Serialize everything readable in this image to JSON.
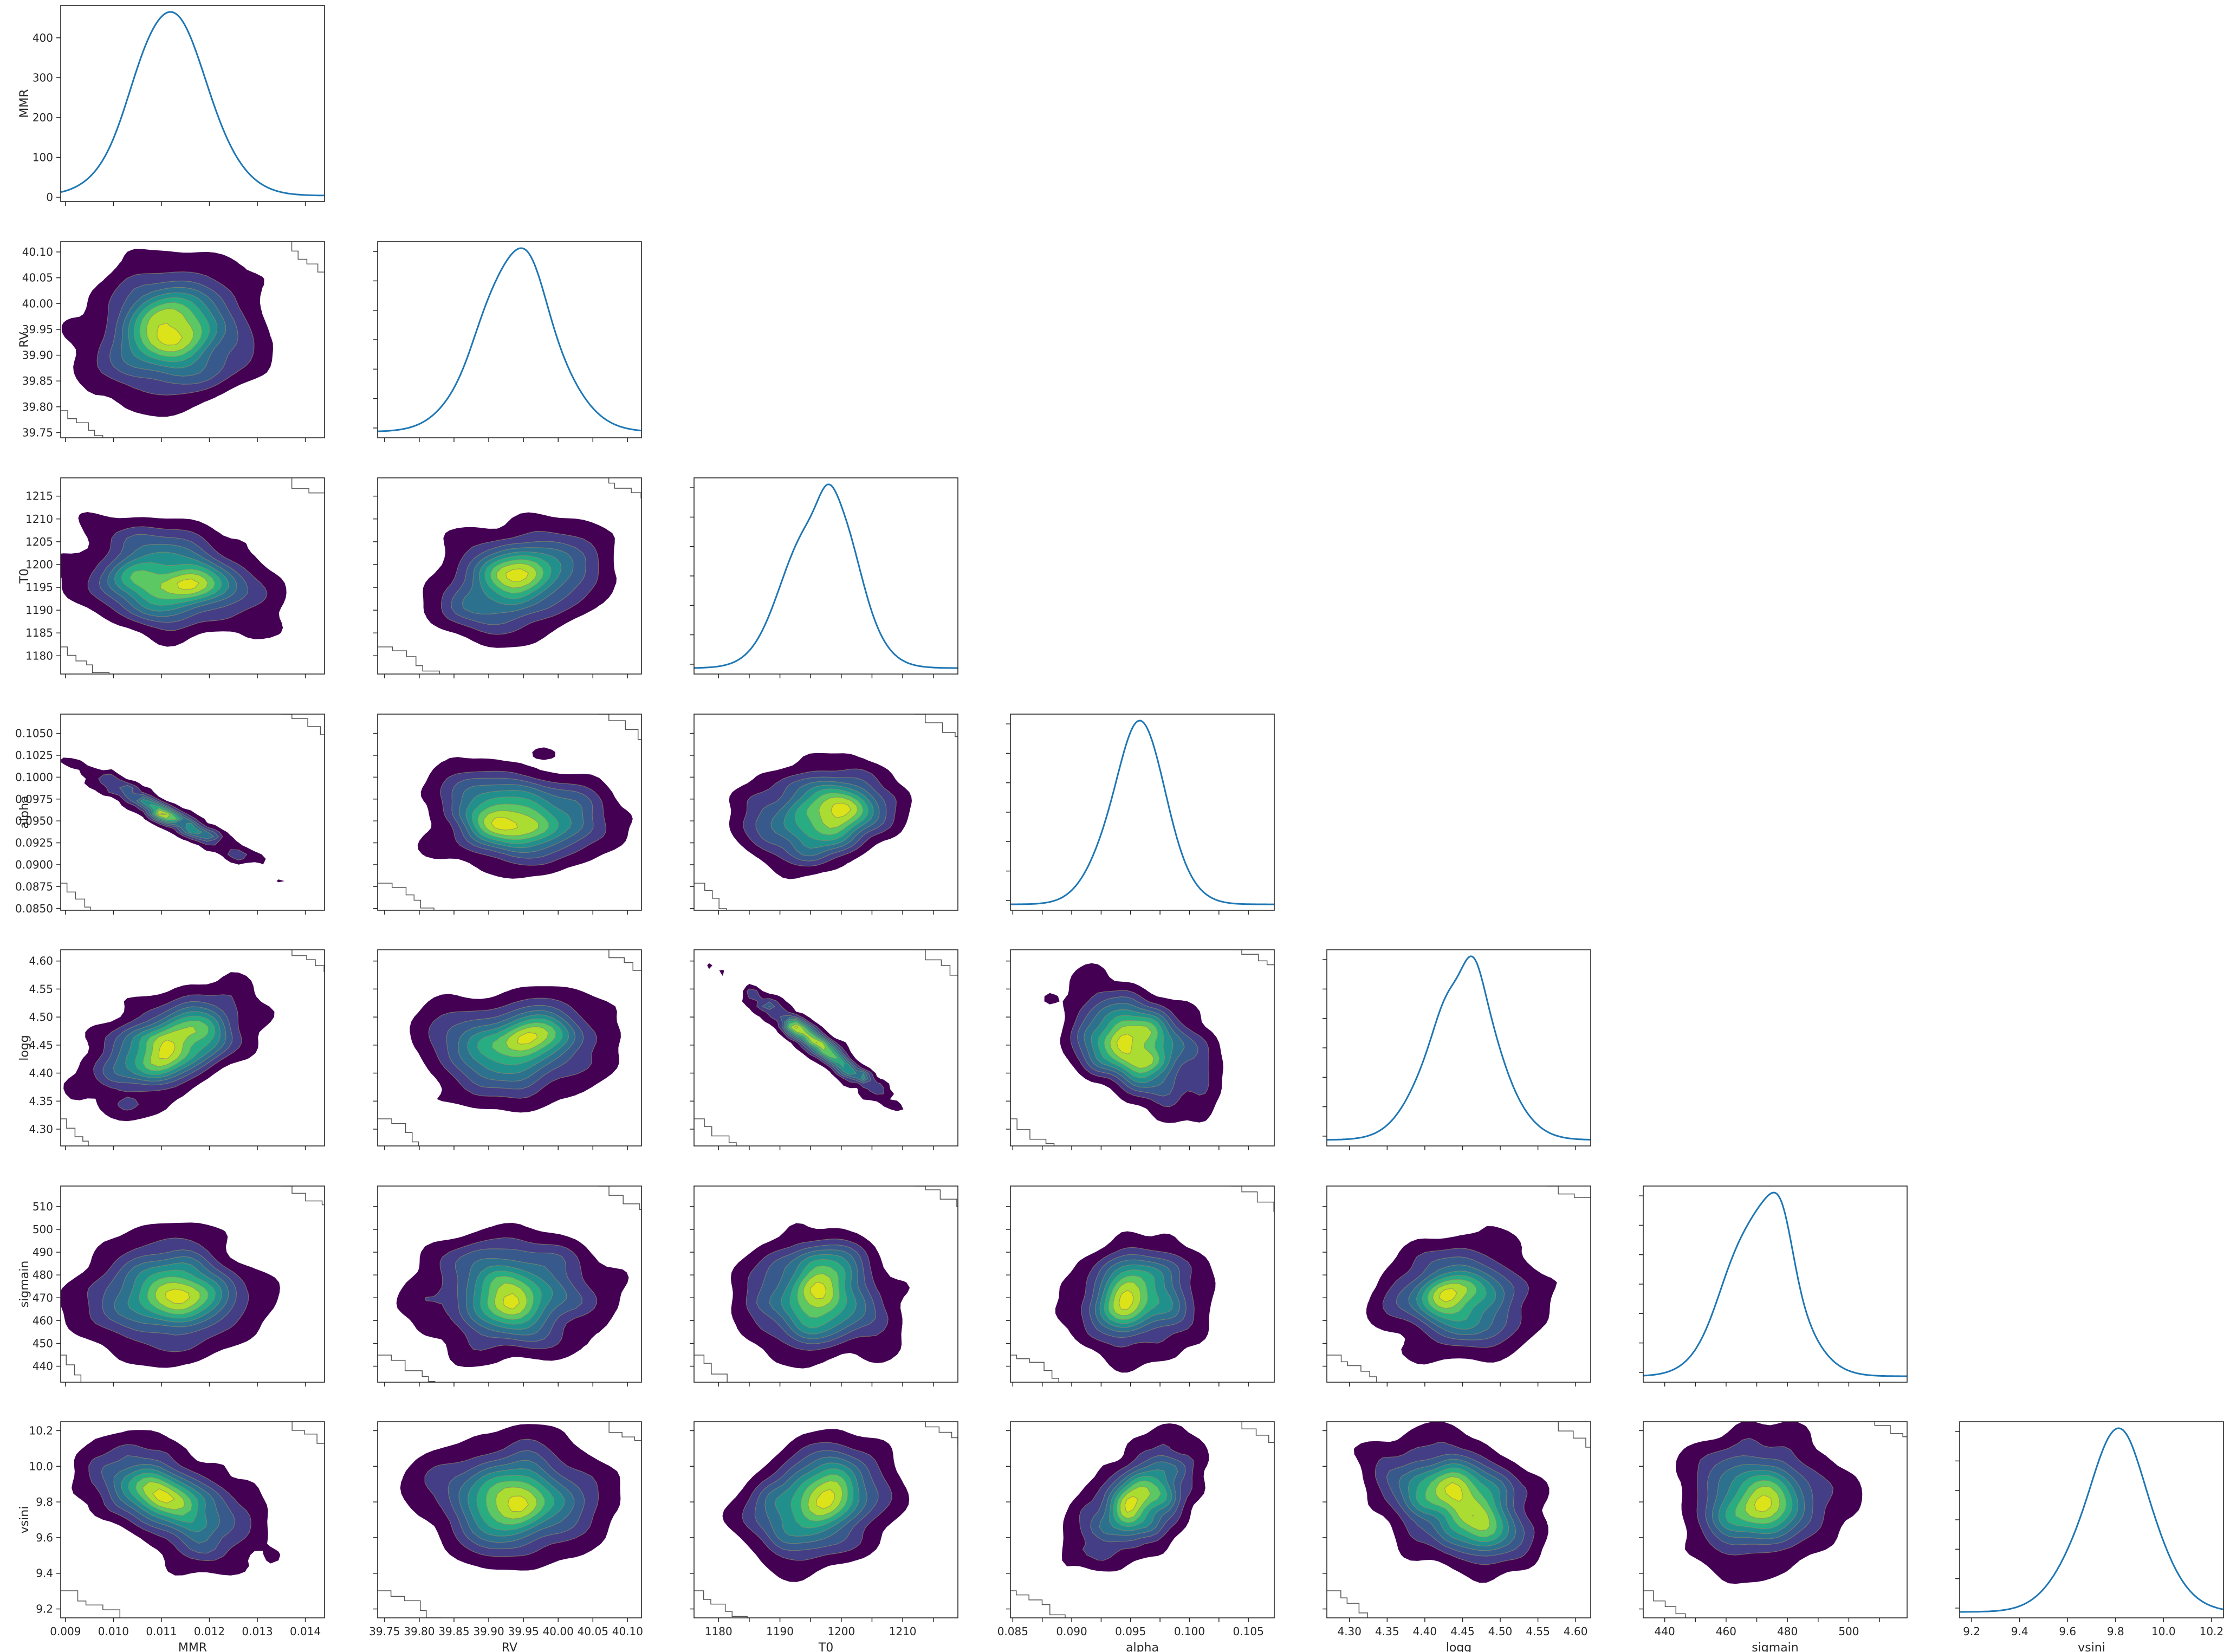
{
  "chart_data": {
    "type": "corner",
    "variables": [
      {
        "name": "MMR",
        "range": [
          0.0089,
          0.0144
        ],
        "ticks": [
          0.009,
          0.01,
          0.011,
          0.012,
          0.013,
          0.014
        ],
        "tick_labels": [
          "0.009",
          "0.010",
          "0.011",
          "0.012",
          "0.013",
          "0.014"
        ],
        "mean": 0.0112,
        "sd": 0.00085
      },
      {
        "name": "RV",
        "range": [
          39.74,
          40.12
        ],
        "ticks": [
          39.75,
          39.8,
          39.85,
          39.9,
          39.95,
          40.0,
          40.05,
          40.1
        ],
        "tick_labels": [
          "39.75",
          "39.80",
          "39.85",
          "39.90",
          "39.95",
          "40.00",
          "40.05",
          "40.10"
        ],
        "mean": 39.94,
        "sd": 0.058
      },
      {
        "name": "T0",
        "range": [
          1176,
          1219
        ],
        "ticks": [
          1180,
          1185,
          1190,
          1195,
          1200,
          1205,
          1210,
          1215
        ],
        "tick_labels": [
          "1180",
          "1185",
          "1190",
          "1195",
          "1200",
          "1205",
          "1210",
          "1215"
        ],
        "x_tick_labels": [
          "1180",
          "",
          "1190",
          "",
          "1200",
          "",
          "1210",
          ""
        ],
        "mean": 1196.5,
        "sd": 5.6
      },
      {
        "name": "alpha",
        "range": [
          0.0848,
          0.1072
        ],
        "ticks": [
          0.085,
          0.0875,
          0.09,
          0.0925,
          0.095,
          0.0975,
          0.1,
          0.1025,
          0.105
        ],
        "tick_labels": [
          "0.0850",
          "0.0875",
          "0.0900",
          "0.0925",
          "0.0950",
          "0.0975",
          "0.1000",
          "0.1025",
          "0.1050"
        ],
        "x_tick_labels": [
          "0.085",
          "",
          "0.090",
          "",
          "0.095",
          "",
          "0.100",
          "",
          "0.105"
        ],
        "mean": 0.0955,
        "sd": 0.0026
      },
      {
        "name": "logg",
        "range": [
          4.27,
          4.62
        ],
        "ticks": [
          4.3,
          4.35,
          4.4,
          4.45,
          4.5,
          4.55,
          4.6
        ],
        "tick_labels": [
          "4.30",
          "4.35",
          "4.40",
          "4.45",
          "4.50",
          "4.55",
          "4.60"
        ],
        "mean": 4.45,
        "sd": 0.047
      },
      {
        "name": "sigmain",
        "range": [
          433,
          519
        ],
        "ticks": [
          440,
          450,
          460,
          470,
          480,
          490,
          500,
          510
        ],
        "tick_labels": [
          "440",
          "450",
          "460",
          "470",
          "480",
          "490",
          "500",
          "510"
        ],
        "x_tick_labels": [
          "440",
          "",
          "460",
          "",
          "480",
          "",
          "500",
          ""
        ],
        "mean": 471,
        "sd": 11.5
      },
      {
        "name": "vsini",
        "range": [
          9.15,
          10.25
        ],
        "ticks": [
          9.2,
          9.4,
          9.6,
          9.8,
          10.0,
          10.2
        ],
        "tick_labels": [
          "9.2",
          "9.4",
          "9.6",
          "9.8",
          "10.0",
          "10.2"
        ],
        "mean": 9.8,
        "sd": 0.16
      }
    ],
    "diagonal": {
      "type": "kde-line",
      "color": "#1f77b4",
      "mmr_density_ticks": [
        0,
        100,
        200,
        300,
        400
      ],
      "mmr_density_tick_labels": [
        "0",
        "100",
        "200",
        "300",
        "400"
      ],
      "mmr_density_range": [
        -15,
        480
      ],
      "mmr_density_peak": 465
    },
    "correlations": [
      {
        "pair": [
          "MMR",
          "RV"
        ],
        "rho": 0.0
      },
      {
        "pair": [
          "MMR",
          "T0"
        ],
        "rho": -0.25
      },
      {
        "pair": [
          "MMR",
          "alpha"
        ],
        "rho": -0.96
      },
      {
        "pair": [
          "MMR",
          "logg"
        ],
        "rho": 0.55
      },
      {
        "pair": [
          "MMR",
          "sigmain"
        ],
        "rho": 0.0
      },
      {
        "pair": [
          "MMR",
          "vsini"
        ],
        "rho": -0.6
      },
      {
        "pair": [
          "RV",
          "T0"
        ],
        "rho": 0.3
      },
      {
        "pair": [
          "RV",
          "alpha"
        ],
        "rho": 0.0
      },
      {
        "pair": [
          "RV",
          "logg"
        ],
        "rho": 0.0
      },
      {
        "pair": [
          "RV",
          "sigmain"
        ],
        "rho": 0.0
      },
      {
        "pair": [
          "RV",
          "vsini"
        ],
        "rho": 0.05
      },
      {
        "pair": [
          "T0",
          "alpha"
        ],
        "rho": 0.15
      },
      {
        "pair": [
          "T0",
          "logg"
        ],
        "rho": -0.97
      },
      {
        "pair": [
          "T0",
          "sigmain"
        ],
        "rho": 0.0
      },
      {
        "pair": [
          "T0",
          "vsini"
        ],
        "rho": 0.25
      },
      {
        "pair": [
          "alpha",
          "logg"
        ],
        "rho": -0.45
      },
      {
        "pair": [
          "alpha",
          "sigmain"
        ],
        "rho": 0.0
      },
      {
        "pair": [
          "alpha",
          "vsini"
        ],
        "rho": 0.6
      },
      {
        "pair": [
          "logg",
          "sigmain"
        ],
        "rho": 0.0
      },
      {
        "pair": [
          "logg",
          "vsini"
        ],
        "rho": -0.4
      },
      {
        "pair": [
          "sigmain",
          "vsini"
        ],
        "rho": 0.0
      }
    ],
    "contour_colors": [
      "#440154",
      "#433e85",
      "#38598c",
      "#2c728e",
      "#21908d",
      "#27ad81",
      "#5cc863",
      "#aadc32",
      "#dce319"
    ],
    "contour_levels": 9,
    "grid": false
  }
}
